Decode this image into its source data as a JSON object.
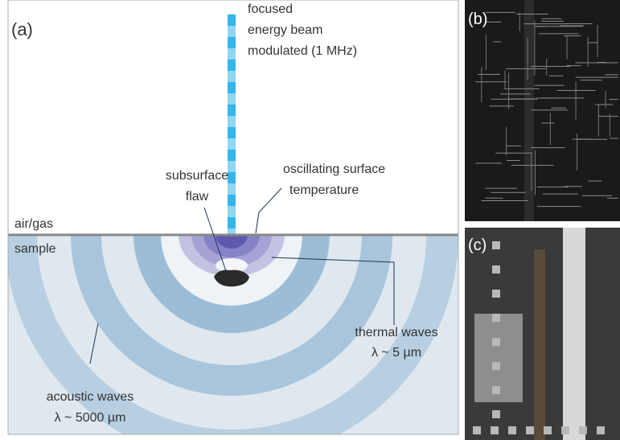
{
  "panel_a": {
    "label": "(a)",
    "beam": [
      "focused",
      "energy beam",
      "modulated (1 MHz)"
    ],
    "flaw": [
      "subsurface",
      "flaw"
    ],
    "surface_temperature": [
      "oscillating surface",
      "temperature"
    ],
    "air": "air/gas",
    "sample": "sample",
    "thermal": [
      "thermal waves",
      "λ ~ 5 µm"
    ],
    "acoustic": [
      "acoustic waves",
      "λ ~ 5000 µm"
    ]
  },
  "panel_b": {
    "label": "(b)"
  },
  "panel_c": {
    "label": "(c)"
  }
}
